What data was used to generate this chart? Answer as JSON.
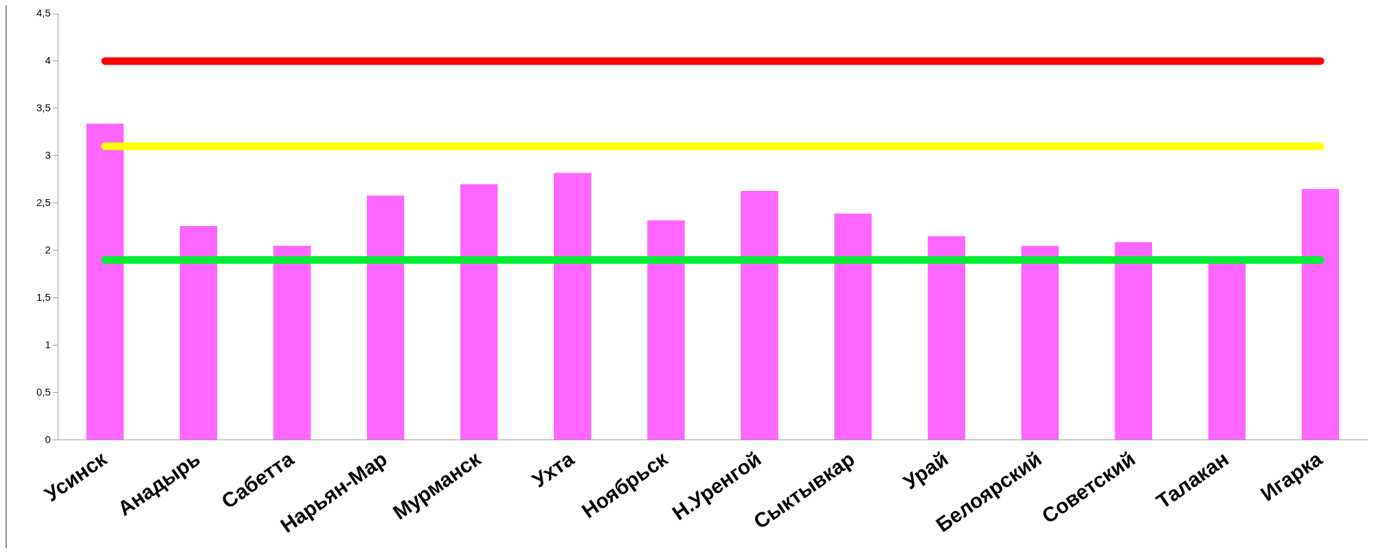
{
  "chart_data": {
    "type": "bar",
    "categories": [
      "Усинск",
      "Анадырь",
      "Сабетта",
      "Нарьян-Мар",
      "Мурманск",
      "Ухта",
      "Ноябрьск",
      "Н.Уренгой",
      "Сыктывкар",
      "Урай",
      "Белоярский",
      "Советский",
      "Талакан",
      "Игарка"
    ],
    "series": [
      {
        "color": "#ff66ff",
        "values": [
          3.34,
          2.26,
          2.05,
          2.58,
          2.7,
          2.82,
          2.32,
          2.63,
          2.39,
          2.15,
          2.05,
          2.09,
          1.88,
          2.65
        ]
      },
      {
        "type": "line",
        "color": "#ff0000",
        "values": [
          4,
          4,
          4,
          4,
          4,
          4,
          4,
          4,
          4,
          4,
          4,
          4,
          4,
          4
        ]
      },
      {
        "type": "line",
        "color": "#ffff00",
        "values": [
          3.1,
          3.1,
          3.1,
          3.1,
          3.1,
          3.1,
          3.1,
          3.1,
          3.1,
          3.1,
          3.1,
          3.1,
          3.1,
          3.1
        ]
      },
      {
        "type": "line",
        "color": "#00ee33",
        "values": [
          1.9,
          1.9,
          1.9,
          1.9,
          1.9,
          1.9,
          1.9,
          1.9,
          1.9,
          1.9,
          1.9,
          1.9,
          1.9,
          1.9
        ]
      }
    ],
    "ylim": [
      0,
      4.5
    ],
    "yticks": [
      {
        "value": 0,
        "label": "0"
      },
      {
        "value": 0.5,
        "label": "0,5"
      },
      {
        "value": 1,
        "label": "1"
      },
      {
        "value": 1.5,
        "label": "1,5"
      },
      {
        "value": 2,
        "label": "2"
      },
      {
        "value": 2.5,
        "label": "2,5"
      },
      {
        "value": 3,
        "label": "3"
      },
      {
        "value": 3.5,
        "label": "3,5"
      },
      {
        "value": 4,
        "label": "4"
      },
      {
        "value": 4.5,
        "label": "4,5"
      }
    ],
    "grid": false,
    "legend": false,
    "marker": "none",
    "line_style": "solid"
  }
}
